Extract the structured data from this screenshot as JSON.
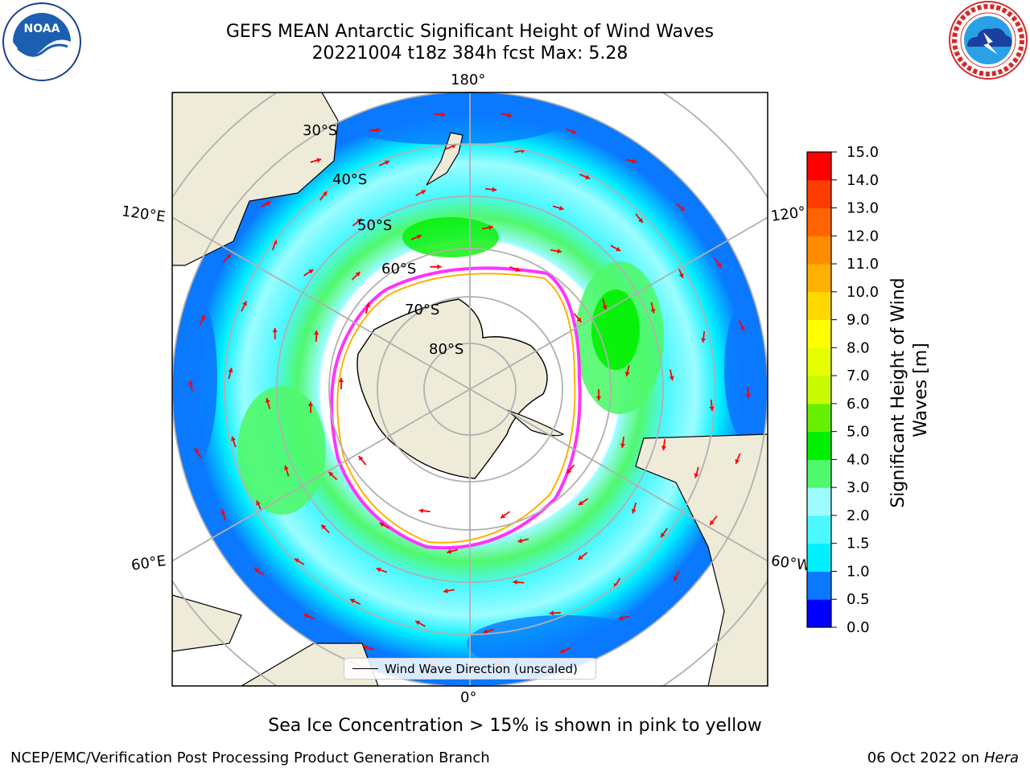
{
  "header": {
    "title_line1": "GEFS MEAN Antarctic Significant Height of Wind Waves",
    "title_line2": "20221004 t18z 384h fcst   Max: 5.28"
  },
  "logos": {
    "left": "noaa-logo",
    "right": "national-weather-service-logo"
  },
  "map": {
    "projection": "south-polar-stereographic",
    "meridian_labels": {
      "top": "180°",
      "bottom": "0°",
      "upper_left": "120°E",
      "upper_right": "120°W",
      "lower_left": "60°E",
      "lower_right": "60°W"
    },
    "parallel_labels": [
      "30°S",
      "40°S",
      "50°S",
      "60°S",
      "70°S",
      "80°S"
    ],
    "land_color": "#efebd9",
    "ice_edge_colors": [
      "#ff33ff",
      "#ffb000",
      "#ffff44"
    ],
    "arrow_color": "#ff0000",
    "legend_label": "Wind Wave Direction (unscaled)"
  },
  "colorbar": {
    "label": "Significant Height of Wind Waves [m]",
    "label_line1": "Significant Height of Wind",
    "label_line2": "Waves [m]",
    "ticks": [
      "0.0",
      "0.5",
      "1.0",
      "1.5",
      "2.0",
      "3.0",
      "4.0",
      "5.0",
      "6.0",
      "7.0",
      "8.0",
      "9.0",
      "10.0",
      "11.0",
      "12.0",
      "13.0",
      "14.0",
      "15.0"
    ],
    "colors": [
      "#0000ff",
      "#0a78ff",
      "#00f0ff",
      "#4cf8ff",
      "#9cfcff",
      "#50f86c",
      "#00f000",
      "#66f000",
      "#c8fa00",
      "#e6ff00",
      "#ffff00",
      "#ffd800",
      "#ffb000",
      "#ff8c00",
      "#ff6400",
      "#ff3c00",
      "#ff0000"
    ]
  },
  "subcaption": "Sea Ice Concentration > 15% is shown in pink to yellow",
  "footer": {
    "left": "NCEP/EMC/Verification Post Processing Product Generation Branch",
    "right_prefix": "06 Oct 2022 on ",
    "right_host": "Hera"
  }
}
